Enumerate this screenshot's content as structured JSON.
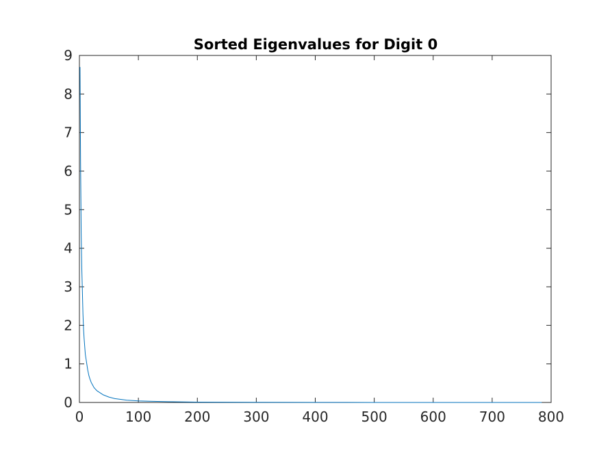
{
  "chart_data": {
    "type": "line",
    "title": "Sorted Eigenvalues for Digit 0",
    "xlabel": "",
    "ylabel": "",
    "xlim": [
      0,
      800
    ],
    "ylim": [
      0,
      9
    ],
    "x_ticks": [
      0,
      100,
      200,
      300,
      400,
      500,
      600,
      700,
      800
    ],
    "y_ticks": [
      0,
      1,
      2,
      3,
      4,
      5,
      6,
      7,
      8,
      9
    ],
    "grid": false,
    "legend": "none",
    "colors": {
      "line": "#0072BD",
      "axes": "#262626",
      "background": "#ffffff"
    },
    "series": [
      {
        "x": [
          1,
          2,
          3,
          4,
          5,
          6,
          7,
          8,
          9,
          10,
          12,
          14,
          16,
          18,
          20,
          25,
          30,
          40,
          50,
          60,
          80,
          100,
          120,
          150,
          200,
          300,
          400,
          500,
          600,
          700,
          784
        ],
        "y": [
          8.7,
          6.2,
          4.4,
          3.5,
          2.9,
          2.3,
          1.9,
          1.65,
          1.45,
          1.25,
          1.05,
          0.85,
          0.7,
          0.6,
          0.52,
          0.38,
          0.3,
          0.2,
          0.14,
          0.1,
          0.06,
          0.04,
          0.03,
          0.02,
          0.01,
          0.004,
          0.002,
          0.001,
          0.0005,
          0.0002,
          0.0001
        ]
      }
    ]
  }
}
